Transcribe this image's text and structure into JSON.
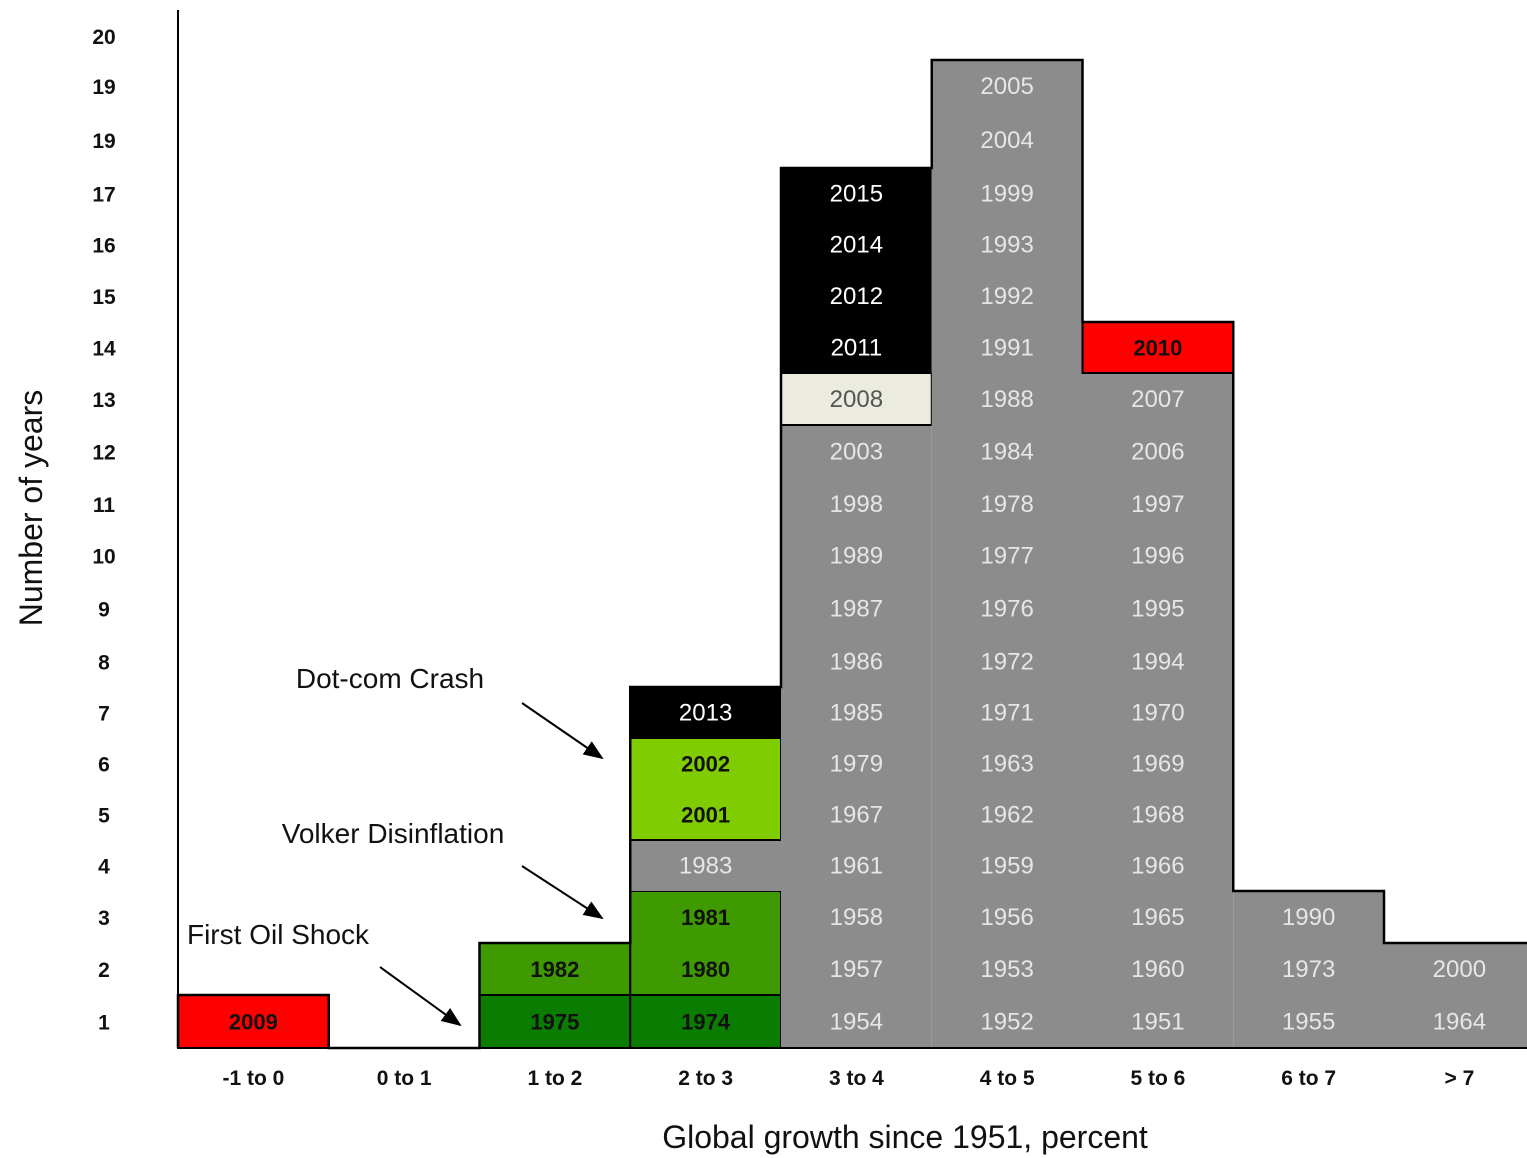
{
  "chart_data": {
    "type": "histogram",
    "xlabel": "Global growth since 1951, percent",
    "ylabel": "Number of years",
    "y_tick_labels": [
      "1",
      "2",
      "3",
      "4",
      "5",
      "6",
      "7",
      "8",
      "9",
      "10",
      "11",
      "12",
      "13",
      "14",
      "15",
      "16",
      "17",
      "19",
      "19",
      "20"
    ],
    "categories": [
      "-1 to 0",
      "0 to 1",
      "1 to 2",
      "2 to 3",
      "3 to 4",
      "4 to 5",
      "5 to 6",
      "6 to 7",
      "> 7"
    ],
    "counts": [
      1,
      0,
      2,
      7,
      17,
      19,
      14,
      3,
      2
    ],
    "columns": [
      {
        "bin": "-1 to 0",
        "years": [
          "2009"
        ],
        "colors": [
          "red"
        ]
      },
      {
        "bin": "0 to 1",
        "years": [],
        "colors": []
      },
      {
        "bin": "1 to 2",
        "years": [
          "1975",
          "1982"
        ],
        "colors": [
          "green_dark",
          "green_mid"
        ]
      },
      {
        "bin": "2 to 3",
        "years": [
          "1974",
          "1980",
          "1981",
          "1983",
          "2001",
          "2002",
          "2013"
        ],
        "colors": [
          "green_dark",
          "green_mid",
          "green_mid",
          "gray",
          "green_light",
          "green_light",
          "black"
        ]
      },
      {
        "bin": "3 to 4",
        "years": [
          "1954",
          "1957",
          "1958",
          "1961",
          "1967",
          "1979",
          "1985",
          "1986",
          "1987",
          "1989",
          "1998",
          "2003",
          "2008",
          "2011",
          "2012",
          "2014",
          "2015"
        ],
        "colors": [
          "gray",
          "gray",
          "gray",
          "gray",
          "gray",
          "gray",
          "gray",
          "gray",
          "gray",
          "gray",
          "gray",
          "gray",
          "cream",
          "black",
          "black",
          "black",
          "black"
        ]
      },
      {
        "bin": "4 to 5",
        "years": [
          "1952",
          "1953",
          "1956",
          "1959",
          "1962",
          "1963",
          "1971",
          "1972",
          "1976",
          "1977",
          "1978",
          "1984",
          "1988",
          "1991",
          "1992",
          "1993",
          "1999",
          "2004",
          "2005"
        ],
        "colors": [
          "gray",
          "gray",
          "gray",
          "gray",
          "gray",
          "gray",
          "gray",
          "gray",
          "gray",
          "gray",
          "gray",
          "gray",
          "gray",
          "gray",
          "gray",
          "gray",
          "gray",
          "gray",
          "gray"
        ]
      },
      {
        "bin": "5 to 6",
        "years": [
          "1951",
          "1960",
          "1965",
          "1966",
          "1968",
          "1969",
          "1970",
          "1994",
          "1995",
          "1996",
          "1997",
          "2006",
          "2007",
          "2010"
        ],
        "colors": [
          "gray",
          "gray",
          "gray",
          "gray",
          "gray",
          "gray",
          "gray",
          "gray",
          "gray",
          "gray",
          "gray",
          "gray",
          "gray",
          "red"
        ]
      },
      {
        "bin": "6 to 7",
        "years": [
          "1955",
          "1973",
          "1990"
        ],
        "colors": [
          "gray",
          "gray",
          "gray"
        ]
      },
      {
        "bin": "> 7",
        "years": [
          "1964",
          "2000"
        ],
        "colors": [
          "gray",
          "gray"
        ]
      }
    ],
    "annotations": [
      {
        "text": "Dot-com Crash",
        "points_to": "2 to 3, 6"
      },
      {
        "text": "Volker Disinflation",
        "points_to": "2 to 3, 3"
      },
      {
        "text": "First Oil Shock",
        "points_to": "1 to 2, 1"
      }
    ],
    "colors": {
      "gray": "#8c8c8c",
      "black": "#000000",
      "red": "#ff0000",
      "cream": "#ecebe0",
      "green_dark": "#0a7d00",
      "green_mid": "#3e9a00",
      "green_light": "#7fcc00",
      "gray_text": "#e6e6e6",
      "white_text": "#ffffff",
      "dark_text": "#111111"
    }
  }
}
